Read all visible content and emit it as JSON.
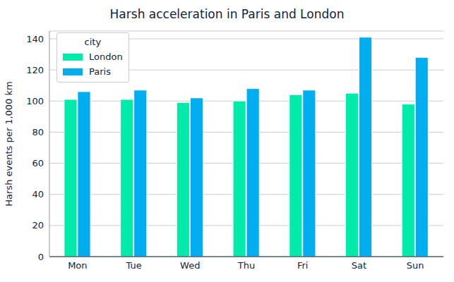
{
  "chart_data": {
    "type": "bar",
    "title": "Harsh acceleration in Paris and London",
    "y_label": "Harsh events per 1,000 km",
    "categories": [
      "Mon",
      "Tue",
      "Wed",
      "Thu",
      "Fri",
      "Sat",
      "Sun"
    ],
    "series": [
      {
        "name": "London",
        "color": "#00ebaa",
        "values": [
          101,
          101,
          99,
          100,
          104,
          105,
          98
        ]
      },
      {
        "name": "Paris",
        "color": "#00aeef",
        "values": [
          106,
          107,
          102,
          108,
          107,
          141,
          128
        ]
      }
    ],
    "legend_title": "city",
    "legend": "upper left",
    "ylim": [
      0,
      145
    ],
    "yticks": [
      0,
      20,
      40,
      60,
      80,
      100,
      120,
      140
    ],
    "grid": true
  }
}
